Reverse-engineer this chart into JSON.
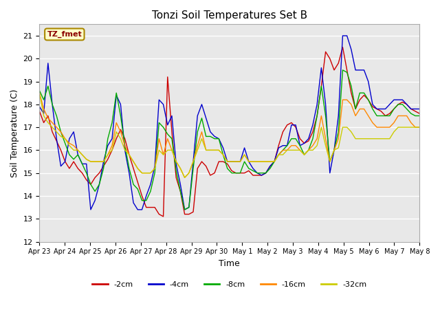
{
  "title": "Tonzi Soil Temperatures Set B",
  "xlabel": "Time",
  "ylabel": "Soil Temperature (C)",
  "ylim": [
    12.0,
    21.5
  ],
  "yticks": [
    12.0,
    13.0,
    14.0,
    15.0,
    16.0,
    17.0,
    18.0,
    19.0,
    20.0,
    21.0
  ],
  "annotation_label": "TZ_fmet",
  "bg_color": "#ffffff",
  "plot_bg_color": "#e8e8e8",
  "series": {
    "-2cm": {
      "color": "#cc0000",
      "data": [
        17.7,
        17.2,
        17.5,
        16.8,
        16.4,
        16.0,
        15.5,
        15.2,
        15.5,
        15.2,
        15.0,
        14.7,
        14.5,
        14.8,
        15.0,
        15.3,
        15.6,
        16.0,
        16.5,
        16.9,
        16.5,
        15.8,
        15.2,
        14.6,
        14.0,
        13.5,
        13.5,
        13.5,
        13.2,
        13.1,
        19.2,
        16.8,
        14.8,
        14.2,
        13.2,
        13.2,
        13.3,
        15.2,
        15.5,
        15.3,
        14.9,
        15.0,
        15.5,
        15.5,
        15.4,
        15.1,
        15.0,
        15.0,
        15.0,
        15.1,
        14.9,
        14.9,
        14.9,
        15.0,
        15.3,
        15.5,
        16.2,
        16.8,
        17.1,
        17.2,
        17.0,
        16.5,
        16.3,
        16.4,
        16.8,
        17.5,
        18.8,
        20.3,
        20.0,
        19.5,
        19.8,
        20.5,
        19.5,
        18.5,
        17.8,
        18.2,
        18.4,
        18.2,
        17.9,
        17.8,
        17.7,
        17.5,
        17.6,
        17.8,
        18.0,
        18.1,
        18.0,
        17.8,
        17.7,
        17.6
      ]
    },
    "-4cm": {
      "color": "#0000cc",
      "data": [
        17.9,
        17.6,
        19.8,
        18.0,
        16.5,
        15.3,
        15.5,
        16.5,
        16.8,
        15.8,
        15.4,
        15.4,
        13.4,
        13.8,
        14.5,
        15.5,
        16.2,
        16.5,
        18.4,
        18.0,
        16.0,
        15.0,
        13.7,
        13.4,
        13.4,
        14.0,
        14.5,
        15.3,
        18.2,
        18.0,
        17.1,
        17.5,
        15.4,
        14.5,
        13.4,
        13.5,
        15.5,
        17.5,
        18.0,
        17.4,
        16.8,
        16.6,
        16.5,
        16.1,
        15.5,
        15.5,
        15.5,
        15.5,
        16.1,
        15.5,
        15.2,
        15.0,
        14.9,
        15.0,
        15.3,
        15.5,
        16.1,
        16.2,
        16.2,
        17.1,
        17.1,
        16.2,
        16.3,
        16.5,
        17.1,
        18.0,
        19.6,
        18.0,
        15.0,
        16.0,
        17.5,
        21.0,
        21.0,
        20.4,
        19.5,
        19.5,
        19.5,
        19.0,
        18.0,
        17.8,
        17.8,
        17.8,
        18.0,
        18.2,
        18.2,
        18.2,
        18.0,
        17.8,
        17.8,
        17.8
      ]
    },
    "-8cm": {
      "color": "#00aa00",
      "data": [
        18.6,
        18.2,
        18.8,
        18.0,
        17.5,
        16.8,
        16.3,
        15.8,
        15.6,
        15.8,
        15.4,
        15.0,
        14.5,
        14.2,
        14.5,
        15.2,
        16.5,
        17.2,
        18.5,
        17.5,
        16.2,
        15.2,
        14.5,
        14.3,
        13.8,
        13.8,
        14.2,
        15.0,
        17.2,
        17.0,
        16.7,
        16.5,
        15.1,
        14.2,
        13.4,
        13.5,
        15.2,
        16.8,
        17.4,
        16.6,
        16.6,
        16.5,
        16.5,
        15.8,
        15.2,
        15.0,
        15.0,
        15.0,
        15.5,
        15.2,
        15.1,
        15.0,
        15.0,
        15.0,
        15.2,
        15.5,
        15.8,
        16.0,
        16.2,
        16.5,
        16.5,
        16.2,
        15.8,
        16.0,
        16.5,
        17.5,
        18.8,
        17.5,
        15.5,
        16.0,
        16.8,
        19.5,
        19.4,
        18.8,
        17.8,
        18.5,
        18.5,
        18.2,
        17.8,
        17.5,
        17.5,
        17.5,
        17.5,
        17.8,
        18.0,
        18.0,
        17.8,
        17.6,
        17.5,
        17.5
      ]
    },
    "-16cm": {
      "color": "#ff8800",
      "data": [
        18.5,
        17.8,
        17.4,
        17.2,
        17.0,
        16.8,
        16.5,
        16.3,
        16.2,
        16.0,
        15.8,
        15.6,
        15.5,
        15.5,
        15.5,
        15.5,
        15.8,
        16.2,
        17.2,
        16.8,
        16.2,
        15.8,
        15.5,
        15.2,
        15.0,
        15.0,
        15.0,
        15.2,
        16.5,
        15.8,
        16.5,
        16.0,
        15.5,
        15.2,
        14.8,
        15.0,
        15.5,
        16.2,
        16.8,
        16.0,
        16.0,
        16.0,
        16.0,
        15.8,
        15.5,
        15.5,
        15.5,
        15.5,
        15.8,
        15.5,
        15.5,
        15.5,
        15.5,
        15.5,
        15.5,
        15.5,
        15.8,
        16.0,
        16.0,
        16.2,
        16.2,
        16.0,
        15.8,
        16.0,
        16.2,
        16.5,
        17.5,
        16.5,
        15.5,
        16.0,
        16.5,
        18.2,
        18.2,
        18.0,
        17.5,
        17.8,
        17.8,
        17.5,
        17.2,
        17.0,
        17.0,
        17.0,
        17.0,
        17.2,
        17.5,
        17.5,
        17.5,
        17.2,
        17.0,
        17.0
      ]
    },
    "-32cm": {
      "color": "#cccc00",
      "data": [
        18.5,
        17.5,
        17.2,
        17.0,
        16.8,
        16.6,
        16.5,
        16.2,
        16.0,
        16.0,
        15.8,
        15.6,
        15.5,
        15.5,
        15.5,
        15.5,
        15.8,
        16.0,
        16.8,
        16.5,
        16.0,
        15.8,
        15.5,
        15.2,
        15.0,
        15.0,
        15.0,
        15.2,
        16.0,
        15.8,
        16.0,
        16.0,
        15.5,
        15.2,
        14.8,
        15.0,
        15.5,
        16.0,
        16.5,
        16.0,
        16.0,
        16.0,
        16.0,
        15.8,
        15.5,
        15.5,
        15.5,
        15.5,
        15.8,
        15.5,
        15.5,
        15.5,
        15.5,
        15.5,
        15.5,
        15.5,
        15.8,
        15.8,
        16.0,
        16.0,
        16.0,
        16.0,
        15.8,
        16.0,
        16.0,
        16.2,
        17.0,
        16.2,
        15.5,
        16.0,
        16.1,
        17.0,
        17.0,
        16.8,
        16.5,
        16.5,
        16.5,
        16.5,
        16.5,
        16.5,
        16.5,
        16.5,
        16.5,
        16.8,
        17.0,
        17.0,
        17.0,
        17.0,
        17.0,
        17.0
      ]
    }
  },
  "x_tick_labels": [
    "Apr 23",
    "Apr 24",
    "Apr 25",
    "Apr 26",
    "Apr 27",
    "Apr 28",
    "Apr 29",
    "Apr 30",
    "May 1",
    "May 2",
    "May 3",
    "May 4",
    "May 5",
    "May 6",
    "May 7",
    "May 8"
  ],
  "num_points": 90
}
